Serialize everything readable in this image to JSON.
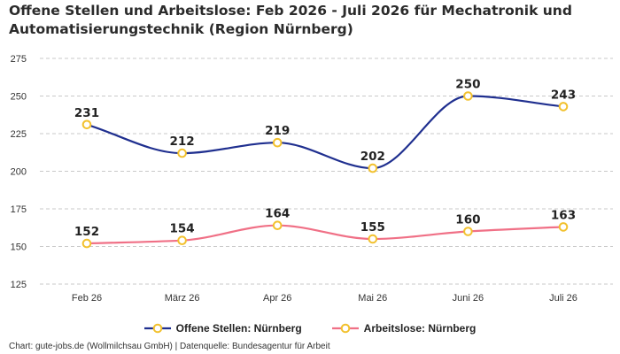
{
  "title": {
    "line1": "Offene Stellen und Arbeitslose: Feb 2026 - Juli 2026 für Mechatronik und",
    "line2": "Automatisierungstechnik (Region Nürnberg)"
  },
  "footer": "Chart: gute-jobs.de (Wollmilchsau GmbH) | Datenquelle: Bundesagentur für Arbeit",
  "chart_data": {
    "type": "line",
    "categories": [
      "Feb 26",
      "März 26",
      "Apr 26",
      "Mai 26",
      "Juni 26",
      "Juli 26"
    ],
    "series": [
      {
        "name": "Offene Stellen: Nürnberg",
        "color": "#1f2f8f",
        "values": [
          231,
          212,
          219,
          202,
          250,
          243
        ]
      },
      {
        "name": "Arbeitslose: Nürnberg",
        "color": "#f07086",
        "values": [
          152,
          154,
          164,
          155,
          160,
          163
        ]
      }
    ],
    "marker_color": "#f2c12e",
    "ylim": [
      125,
      275
    ],
    "yticks": [
      125,
      150,
      175,
      200,
      225,
      250,
      275
    ],
    "grid": true,
    "legend_position": "bottom"
  }
}
